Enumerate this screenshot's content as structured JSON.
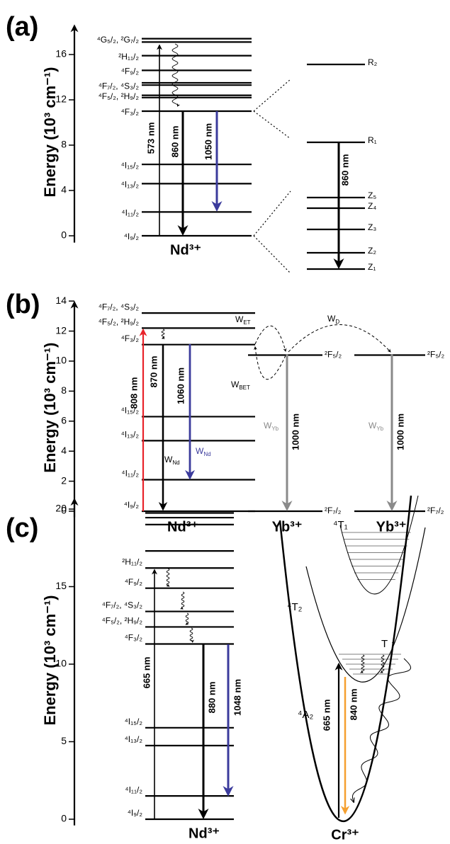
{
  "panels": [
    {
      "label": "(a)",
      "axis_label": "Energy (10³ cm⁻¹)",
      "ylim": [
        -0.6,
        18.9
      ],
      "yticks": [
        0,
        4,
        8,
        12,
        16
      ],
      "groups": [
        {
          "ion": "Nd³⁺",
          "levels": [
            {
              "energy": 17.4,
              "label": "⁴G₅/₂, ²G₇/₂"
            },
            {
              "energy": 17.1
            },
            {
              "energy": 15.9,
              "label": "²H₁₁/₂"
            },
            {
              "energy": 14.6,
              "label": "⁴F₉/₂"
            },
            {
              "energy": 13.5
            },
            {
              "energy": 13.3,
              "label": "⁴F₇/₂, ⁴S₃/₂"
            },
            {
              "energy": 12.4,
              "label": "⁴F₅/₂, ²H₉/₂"
            },
            {
              "energy": 12.2
            },
            {
              "energy": 11.0,
              "label": "⁴F₃/₂"
            },
            {
              "energy": 6.3,
              "label": "⁴I₁₅/₂"
            },
            {
              "energy": 4.6,
              "label": "⁴I₁₃/₂"
            },
            {
              "energy": 2.1,
              "label": "⁴I₁₁/₂"
            },
            {
              "energy": 0,
              "label": "⁴I₉/₂"
            }
          ]
        }
      ],
      "transitions": [
        "573 nm",
        "860 nm",
        "1050 nm"
      ],
      "stark": {
        "levels": [
          "R₂",
          "R₁",
          "Z₅",
          "Z₄",
          "Z₃",
          "Z₂",
          "Z₁"
        ],
        "transition": "860 nm"
      }
    },
    {
      "label": "(b)",
      "axis_label": "Energy (10³ cm⁻¹)",
      "ylim": [
        -0.4,
        14.2
      ],
      "yticks": [
        0,
        2,
        4,
        6,
        8,
        10,
        12,
        14
      ],
      "groups": [
        {
          "ion": "Nd³⁺",
          "levels": [
            {
              "energy": 13.2,
              "label": "⁴F₇/₂, ⁴S₃/₂"
            },
            {
              "energy": 12.2,
              "label": "⁴F₅/₂, ²H₉/₂"
            },
            {
              "energy": 11.1,
              "label": "⁴F₃/₂"
            },
            {
              "energy": 6.3,
              "label": "⁴I₁₅/₂"
            },
            {
              "energy": 4.7,
              "label": "⁴I₁₃/₂"
            },
            {
              "energy": 2.1,
              "label": "⁴I₁₁/₂"
            },
            {
              "energy": 0,
              "label": "⁴I₉/₂"
            }
          ]
        },
        {
          "ion": "Yb³⁺",
          "levels": [
            {
              "energy": 10.4,
              "label": "²F₅/₂"
            },
            {
              "energy": 0,
              "label": "²F₇/₂"
            }
          ]
        },
        {
          "ion": "Yb³⁺",
          "levels": [
            {
              "energy": 10.4,
              "label": "²F₅/₂"
            },
            {
              "energy": 0,
              "label": "²F₇/₂"
            }
          ]
        }
      ],
      "transitions": [
        "808 nm",
        "870 nm",
        "1060 nm",
        "1000 nm",
        "1000 nm"
      ],
      "rates": [
        {
          "main": "W",
          "sub": "Nd"
        },
        {
          "main": "W",
          "sub": "Nd"
        },
        {
          "main": "W",
          "sub": "ET"
        },
        {
          "main": "W",
          "sub": "D"
        },
        {
          "main": "W",
          "sub": "BET"
        },
        {
          "main": "W",
          "sub": "Yb"
        },
        {
          "main": "W",
          "sub": "Yb"
        }
      ]
    },
    {
      "label": "(c)",
      "axis_label": "Energy (10³ cm⁻¹)",
      "ylim": [
        -0.4,
        20.9
      ],
      "yticks": [
        0,
        5,
        10,
        15,
        20
      ],
      "groups": [
        {
          "ion": "Nd³⁺",
          "levels": [
            {
              "energy": 19.75
            },
            {
              "energy": 19.45
            },
            {
              "energy": 19.0
            },
            {
              "energy": 17.3
            },
            {
              "energy": 16.2,
              "label": "²H₁₁/₂"
            },
            {
              "energy": 14.9,
              "label": "⁴F₉/₂"
            },
            {
              "energy": 13.4,
              "label": "⁴F₇/₂, ⁴S₃/₂"
            },
            {
              "energy": 12.4,
              "label": "⁴F₅/₂, ²H₉/₂"
            },
            {
              "energy": 11.3,
              "label": "⁴F₃/₂"
            },
            {
              "energy": 5.9,
              "label": "⁴I₁₅/₂"
            },
            {
              "energy": 4.75,
              "label": "⁴I₁₃/₂"
            },
            {
              "energy": 1.5,
              "label": "⁴I₁₁/₂"
            },
            {
              "energy": 0,
              "label": "⁴I₉/₂"
            }
          ]
        }
      ],
      "transitions": [
        "665 nm",
        "880 nm",
        "1048 nm"
      ],
      "cr": {
        "ion": "Cr³⁺",
        "states": [
          "⁴T₁",
          "⁴T₂",
          "⁴A₂"
        ],
        "note": "T ↑",
        "transitions": [
          "665 nm",
          "840 nm"
        ]
      }
    }
  ]
}
